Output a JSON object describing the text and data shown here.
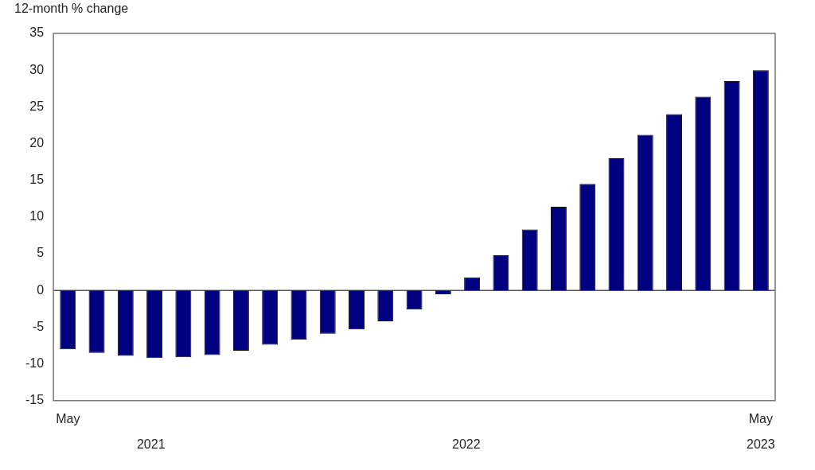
{
  "chart_data": {
    "type": "bar",
    "ylabel": "12-month % change",
    "categories": [
      "May",
      null,
      null,
      null,
      null,
      null,
      null,
      null,
      null,
      null,
      null,
      null,
      null,
      null,
      null,
      null,
      null,
      null,
      null,
      null,
      null,
      null,
      null,
      null,
      "May"
    ],
    "values": [
      -8.0,
      -8.5,
      -8.9,
      -9.2,
      -9.1,
      -8.8,
      -8.2,
      -7.4,
      -6.7,
      -5.9,
      -5.3,
      -4.2,
      -2.6,
      -0.5,
      1.8,
      4.8,
      8.3,
      11.4,
      14.5,
      18.0,
      21.2,
      24.0,
      26.4,
      28.5,
      30.0
    ],
    "color": "#000080",
    "ylim": [
      -15,
      35
    ],
    "yticks": [
      -15,
      -10,
      -5,
      0,
      5,
      10,
      15,
      20,
      25,
      30,
      35
    ],
    "ref_lines": [
      {
        "axis": "y",
        "value": 0,
        "color": "#555555"
      }
    ],
    "annotations": [
      "2021",
      "2022",
      "2023"
    ],
    "grid": false,
    "legend": false
  }
}
